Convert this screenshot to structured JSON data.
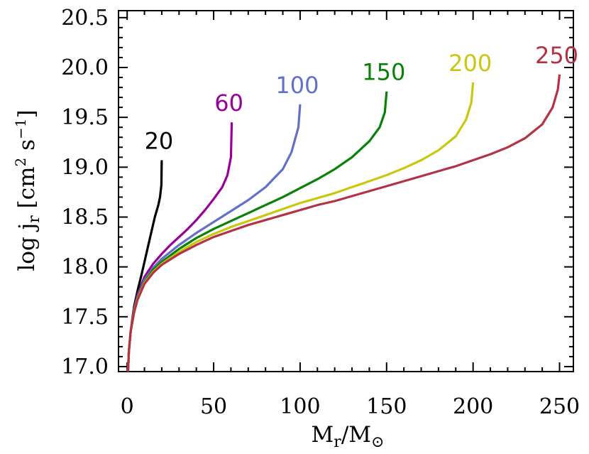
{
  "chart_data": {
    "type": "line",
    "xlabel": "M_r/M_⊙",
    "ylabel": "log j_r [cm^2 s^-1]",
    "xlim": [
      -5,
      258
    ],
    "ylim": [
      16.95,
      20.57
    ],
    "x_ticks": [
      "0",
      "50",
      "100",
      "150",
      "200",
      "250"
    ],
    "y_ticks": [
      "17.0",
      "17.5",
      "18.0",
      "18.5",
      "19.0",
      "19.5",
      "20.0",
      "20.5"
    ],
    "grid": false,
    "series": [
      {
        "name": "20",
        "color": "#000000",
        "points": [
          [
            0.5,
            16.95
          ],
          [
            1,
            17.15
          ],
          [
            2,
            17.35
          ],
          [
            3,
            17.48
          ],
          [
            4,
            17.6
          ],
          [
            6,
            17.76
          ],
          [
            8,
            17.9
          ],
          [
            10,
            18.05
          ],
          [
            12,
            18.2
          ],
          [
            14,
            18.35
          ],
          [
            16,
            18.5
          ],
          [
            18,
            18.62
          ],
          [
            19,
            18.7
          ],
          [
            19.8,
            18.82
          ],
          [
            20,
            19.07
          ]
        ]
      },
      {
        "name": "60",
        "color": "#990099",
        "points": [
          [
            0.5,
            16.95
          ],
          [
            1,
            17.15
          ],
          [
            2,
            17.35
          ],
          [
            4,
            17.58
          ],
          [
            6,
            17.72
          ],
          [
            10,
            17.9
          ],
          [
            15,
            18.03
          ],
          [
            20,
            18.13
          ],
          [
            25,
            18.22
          ],
          [
            30,
            18.3
          ],
          [
            35,
            18.38
          ],
          [
            40,
            18.47
          ],
          [
            45,
            18.57
          ],
          [
            50,
            18.68
          ],
          [
            55,
            18.8
          ],
          [
            58,
            18.92
          ],
          [
            60,
            19.1
          ],
          [
            60.5,
            19.45
          ]
        ]
      },
      {
        "name": "100",
        "color": "#6470c8",
        "points": [
          [
            0.5,
            16.95
          ],
          [
            1,
            17.15
          ],
          [
            2,
            17.35
          ],
          [
            4,
            17.57
          ],
          [
            6,
            17.7
          ],
          [
            10,
            17.87
          ],
          [
            15,
            17.99
          ],
          [
            20,
            18.08
          ],
          [
            30,
            18.22
          ],
          [
            40,
            18.34
          ],
          [
            50,
            18.45
          ],
          [
            60,
            18.56
          ],
          [
            70,
            18.67
          ],
          [
            80,
            18.8
          ],
          [
            90,
            18.98
          ],
          [
            95,
            19.15
          ],
          [
            99,
            19.4
          ],
          [
            100,
            19.63
          ]
        ]
      },
      {
        "name": "150",
        "color": "#078207",
        "points": [
          [
            0.5,
            16.95
          ],
          [
            1,
            17.15
          ],
          [
            2,
            17.35
          ],
          [
            4,
            17.56
          ],
          [
            6,
            17.69
          ],
          [
            10,
            17.85
          ],
          [
            15,
            17.97
          ],
          [
            20,
            18.05
          ],
          [
            30,
            18.18
          ],
          [
            40,
            18.29
          ],
          [
            50,
            18.38
          ],
          [
            60,
            18.46
          ],
          [
            70,
            18.54
          ],
          [
            80,
            18.62
          ],
          [
            90,
            18.7
          ],
          [
            100,
            18.79
          ],
          [
            110,
            18.88
          ],
          [
            120,
            18.98
          ],
          [
            130,
            19.1
          ],
          [
            140,
            19.26
          ],
          [
            146,
            19.4
          ],
          [
            149,
            19.55
          ],
          [
            150,
            19.76
          ]
        ]
      },
      {
        "name": "200",
        "color": "#c8c80f",
        "points": [
          [
            0.5,
            16.95
          ],
          [
            1,
            17.15
          ],
          [
            2,
            17.35
          ],
          [
            4,
            17.55
          ],
          [
            6,
            17.68
          ],
          [
            10,
            17.84
          ],
          [
            15,
            17.95
          ],
          [
            20,
            18.03
          ],
          [
            30,
            18.15
          ],
          [
            40,
            18.25
          ],
          [
            50,
            18.33
          ],
          [
            60,
            18.4
          ],
          [
            70,
            18.46
          ],
          [
            80,
            18.52
          ],
          [
            90,
            18.58
          ],
          [
            100,
            18.64
          ],
          [
            110,
            18.69
          ],
          [
            120,
            18.74
          ],
          [
            130,
            18.8
          ],
          [
            140,
            18.86
          ],
          [
            150,
            18.92
          ],
          [
            160,
            18.99
          ],
          [
            170,
            19.07
          ],
          [
            180,
            19.17
          ],
          [
            190,
            19.31
          ],
          [
            196,
            19.48
          ],
          [
            199,
            19.65
          ],
          [
            200,
            19.85
          ]
        ]
      },
      {
        "name": "250",
        "color": "#b43246",
        "points": [
          [
            0.5,
            16.95
          ],
          [
            1,
            17.15
          ],
          [
            2,
            17.35
          ],
          [
            4,
            17.54
          ],
          [
            6,
            17.67
          ],
          [
            10,
            17.83
          ],
          [
            15,
            17.94
          ],
          [
            20,
            18.02
          ],
          [
            30,
            18.13
          ],
          [
            40,
            18.22
          ],
          [
            50,
            18.3
          ],
          [
            60,
            18.36
          ],
          [
            70,
            18.42
          ],
          [
            80,
            18.47
          ],
          [
            90,
            18.52
          ],
          [
            100,
            18.57
          ],
          [
            110,
            18.62
          ],
          [
            120,
            18.66
          ],
          [
            130,
            18.71
          ],
          [
            140,
            18.76
          ],
          [
            150,
            18.81
          ],
          [
            160,
            18.86
          ],
          [
            170,
            18.91
          ],
          [
            180,
            18.96
          ],
          [
            190,
            19.01
          ],
          [
            200,
            19.07
          ],
          [
            210,
            19.13
          ],
          [
            220,
            19.2
          ],
          [
            230,
            19.29
          ],
          [
            240,
            19.43
          ],
          [
            246,
            19.6
          ],
          [
            249,
            19.78
          ],
          [
            250,
            19.93
          ]
        ]
      }
    ]
  }
}
